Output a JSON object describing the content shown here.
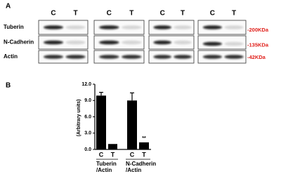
{
  "panel_a": {
    "label": "A",
    "column_headers": [
      "C",
      "T",
      "C",
      "T",
      "C",
      "T",
      "C",
      "T"
    ],
    "rows": [
      "Tuberin",
      "N-Cadherin",
      "Actin"
    ],
    "markers": [
      "-200KDa",
      "-135KDa",
      "-42KDa"
    ]
  },
  "chart_data": {
    "type": "bar",
    "panel_label": "B",
    "y_label": "(Arbitrary units)",
    "categories": [
      "C",
      "T",
      "C",
      "T"
    ],
    "groups": [
      [
        "Tuberin",
        "/Actin"
      ],
      [
        "N-Cadherin",
        "/Actin"
      ]
    ],
    "values": [
      9.9,
      1.0,
      9.0,
      1.3
    ],
    "errors": [
      0.6,
      null,
      1.4,
      null
    ],
    "annotation": "**",
    "color": "#000000",
    "ylim": [
      0,
      12
    ],
    "yticks": [
      {
        "value": 0,
        "label": "0.0"
      },
      {
        "value": 3,
        "label": "3.0"
      },
      {
        "value": 6,
        "label": "6.0"
      },
      {
        "value": 9,
        "label": "9.0"
      },
      {
        "value": 12,
        "label": "12.0"
      }
    ]
  }
}
